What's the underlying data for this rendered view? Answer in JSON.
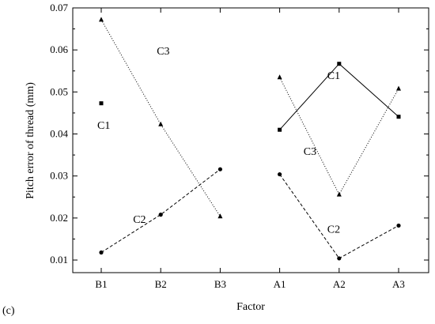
{
  "chart_data": {
    "type": "line",
    "title": "",
    "xlabel": "Factor",
    "ylabel": "Pitch error of thread (mm)",
    "categories": [
      "B1",
      "B2",
      "B3",
      "A1",
      "A2",
      "A3"
    ],
    "ylim": [
      0.007,
      0.07
    ],
    "yticks": [
      "0.01",
      "0.02",
      "0.03",
      "0.04",
      "0.05",
      "0.06",
      "0.07"
    ],
    "grid": false,
    "series": [
      {
        "name": "C1",
        "marker": "square",
        "style": "solid",
        "segments": [
          {
            "x": [
              "B1"
            ],
            "y": [
              0.0473
            ]
          },
          {
            "x": [
              "A1",
              "A2",
              "A3"
            ],
            "y": [
              0.041,
              0.0567,
              0.0441
            ]
          }
        ]
      },
      {
        "name": "C2",
        "marker": "circle",
        "style": "dashed",
        "segments": [
          {
            "x": [
              "B1",
              "B2",
              "B3"
            ],
            "y": [
              0.0118,
              0.0208,
              0.0316
            ]
          },
          {
            "x": [
              "A1",
              "A2",
              "A3"
            ],
            "y": [
              0.0304,
              0.0104,
              0.0182
            ]
          }
        ]
      },
      {
        "name": "C3",
        "marker": "triangle",
        "style": "dotted",
        "segments": [
          {
            "x": [
              "B1",
              "B2",
              "B3"
            ],
            "y": [
              0.0672,
              0.0423,
              0.0204
            ]
          },
          {
            "x": [
              "A1",
              "A2",
              "A3"
            ],
            "y": [
              0.0535,
              0.0256,
              0.0508
            ]
          }
        ]
      }
    ],
    "annotations": [
      {
        "text": "C1",
        "series": "C1",
        "at": [
          "B1",
          0.0422
        ]
      },
      {
        "text": "C3",
        "series": "C3",
        "at": [
          "B2",
          0.0598
        ]
      },
      {
        "text": "C2",
        "series": "C2",
        "at": [
          "B2",
          0.0198
        ]
      },
      {
        "text": "C1",
        "series": "C1",
        "at": [
          "A2",
          0.054
        ]
      },
      {
        "text": "C3",
        "series": "C3",
        "at": [
          "A2",
          0.036
        ]
      },
      {
        "text": "C2",
        "series": "C2",
        "at": [
          "A2",
          0.0174
        ]
      }
    ]
  },
  "panel_label": "(c)"
}
